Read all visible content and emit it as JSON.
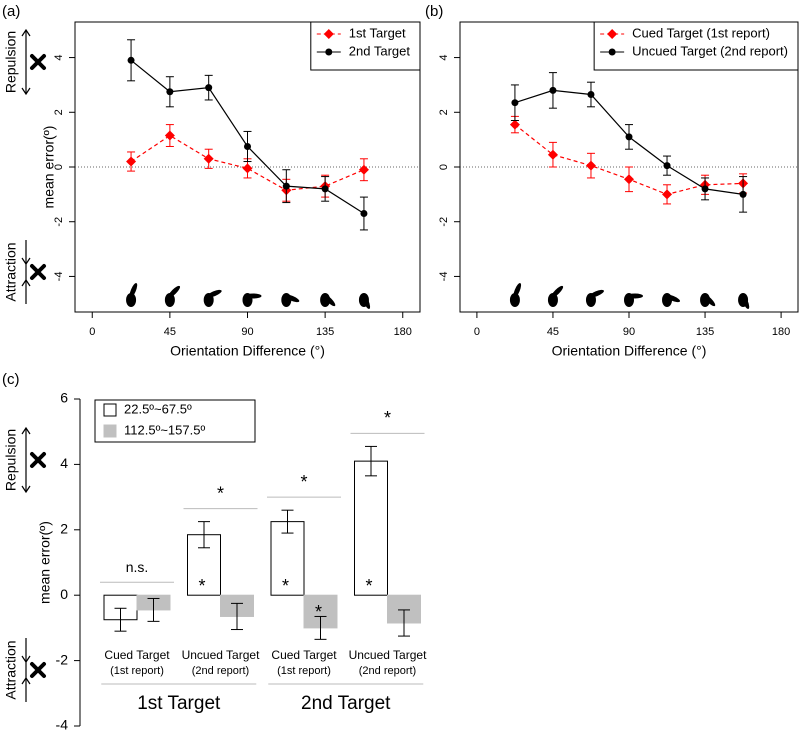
{
  "chart_data": [
    {
      "type": "line",
      "panel": "(a)",
      "ylabel": "mean error(º)",
      "xlabel": "Orientation Difference (°)",
      "side_labels": [
        "Repulsion",
        "Attraction"
      ],
      "x": [
        22.5,
        45,
        67.5,
        90,
        112.5,
        135,
        157.5
      ],
      "series": [
        {
          "name": "1st Target",
          "color": "#ff0000",
          "dash": true,
          "marker": "diamond",
          "values": [
            0.2,
            1.15,
            0.3,
            -0.05,
            -0.85,
            -0.7,
            -0.1
          ],
          "errors": [
            0.35,
            0.4,
            0.35,
            0.35,
            0.4,
            0.4,
            0.4
          ]
        },
        {
          "name": "2nd Target",
          "color": "#000000",
          "dash": false,
          "marker": "circle",
          "values": [
            3.9,
            2.75,
            2.9,
            0.75,
            -0.7,
            -0.8,
            -1.7
          ],
          "errors": [
            0.75,
            0.55,
            0.45,
            0.55,
            0.6,
            0.45,
            0.6
          ]
        }
      ],
      "xlim": [
        -10,
        190
      ],
      "xticks": [
        0,
        45,
        90,
        135,
        180
      ],
      "ylim": [
        -5.3,
        5.3
      ],
      "yticks": [
        -4,
        -2,
        0,
        2,
        4
      ],
      "zero_line": true,
      "legend": "top-right"
    },
    {
      "type": "line",
      "panel": "(b)",
      "xlabel": "Orientation Difference (°)",
      "x": [
        22.5,
        45,
        67.5,
        90,
        112.5,
        135,
        157.5
      ],
      "series": [
        {
          "name": "Cued Target (1st report)",
          "color": "#ff0000",
          "dash": true,
          "marker": "diamond",
          "values": [
            1.55,
            0.45,
            0.05,
            -0.45,
            -1.0,
            -0.65,
            -0.6
          ],
          "errors": [
            0.3,
            0.45,
            0.45,
            0.45,
            0.35,
            0.35,
            0.35
          ]
        },
        {
          "name": "Uncued Target (2nd report)",
          "color": "#000000",
          "dash": false,
          "marker": "circle",
          "values": [
            2.35,
            2.8,
            2.65,
            1.1,
            0.05,
            -0.8,
            -1.0
          ],
          "errors": [
            0.65,
            0.65,
            0.45,
            0.45,
            0.35,
            0.4,
            0.65
          ]
        }
      ],
      "xlim": [
        -10,
        190
      ],
      "xticks": [
        0,
        45,
        90,
        135,
        180
      ],
      "ylim": [
        -5.3,
        5.3
      ],
      "yticks": [
        -4,
        -2,
        0,
        2,
        4
      ],
      "zero_line": true,
      "legend": "top-right"
    },
    {
      "type": "bar",
      "panel": "(c)",
      "ylabel": "mean error(º)",
      "side_labels": [
        "Repulsion",
        "Attraction"
      ],
      "categories": [
        "Cued Target",
        "Uncued Target",
        "Cued Target",
        "Uncued Target"
      ],
      "subcategories": [
        "(1st report)",
        "(2nd report)",
        "(1st report)",
        "(2nd report)"
      ],
      "groups": [
        "1st Target",
        "2nd Target"
      ],
      "series": [
        {
          "name": "22.5º~67.5º",
          "color": "#ffffff",
          "values": [
            -0.75,
            1.85,
            2.25,
            4.1
          ],
          "errors": [
            0.35,
            0.4,
            0.35,
            0.45
          ],
          "bar_labels": [
            null,
            "*",
            "*",
            "*"
          ]
        },
        {
          "name": "112.5º~157.5º",
          "color": "#c0c0c0",
          "values": [
            -0.45,
            -0.65,
            -1.0,
            -0.85
          ],
          "errors": [
            0.35,
            0.4,
            0.35,
            0.4
          ],
          "bar_labels": [
            null,
            null,
            "*",
            null
          ]
        }
      ],
      "pair_labels": [
        "n.s.",
        "*",
        "*",
        "*"
      ],
      "ylim": [
        -4,
        6
      ],
      "yticks": [
        -4,
        -2,
        0,
        2,
        4,
        6
      ],
      "legend": "top-left"
    }
  ]
}
